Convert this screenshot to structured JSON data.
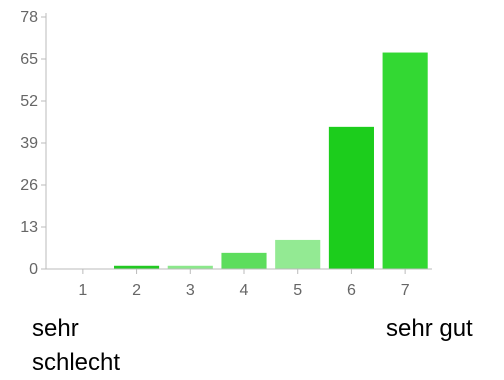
{
  "chart_data": {
    "type": "bar",
    "categories": [
      "1",
      "2",
      "3",
      "4",
      "5",
      "6",
      "7"
    ],
    "values": [
      0,
      1,
      1,
      5,
      9,
      44,
      67
    ],
    "colors": [
      "#2fd22f",
      "#22c922",
      "#8be88b",
      "#5ddd5d",
      "#93ea93",
      "#1ccd1c",
      "#33d833"
    ],
    "yticks": [
      "0",
      "13",
      "26",
      "39",
      "52",
      "65",
      "78"
    ],
    "ylim": [
      0,
      78
    ],
    "grid": false,
    "title": "",
    "xlabel": "",
    "ylabel": ""
  },
  "scale_labels": {
    "low": "sehr schlecht",
    "high": "sehr gut"
  }
}
